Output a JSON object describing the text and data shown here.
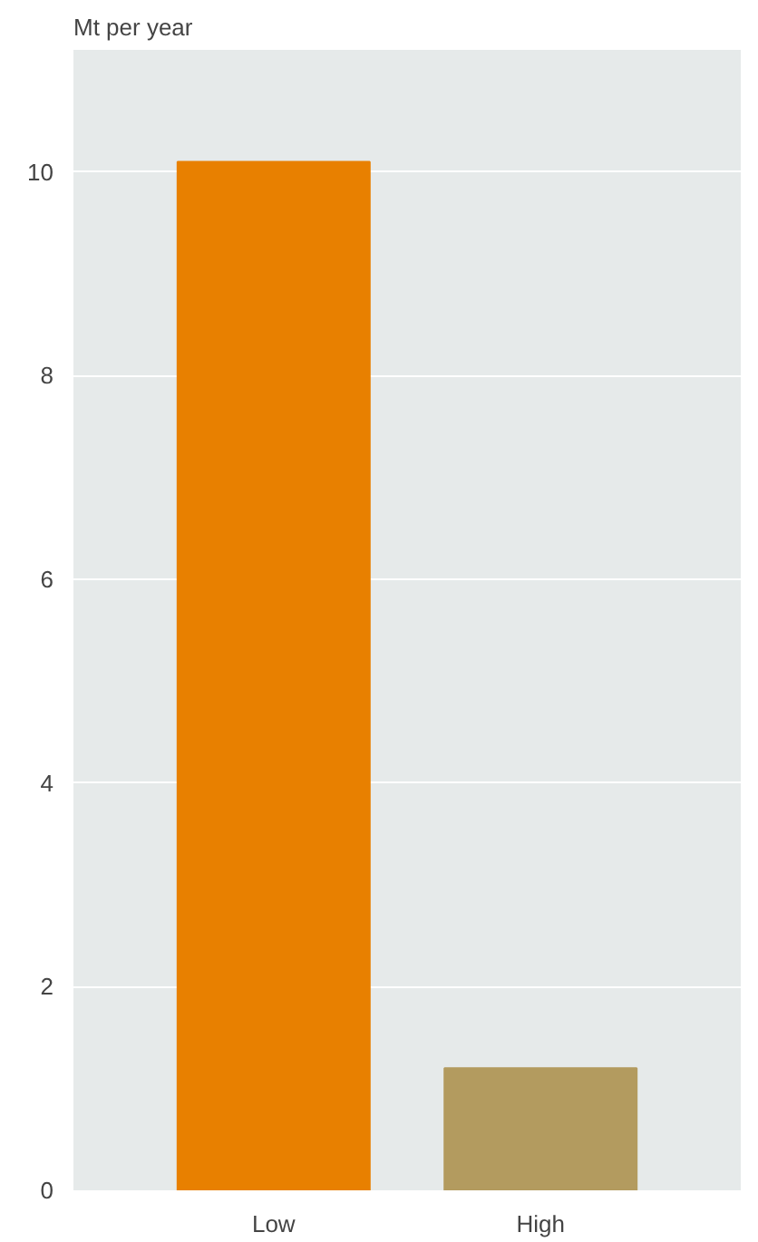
{
  "chart_data": {
    "type": "bar",
    "ylabel": "Mt per year",
    "categories": [
      "Low",
      "High"
    ],
    "values": [
      10.1,
      1.2
    ],
    "colors": [
      "#e88000",
      "#b39b5f"
    ],
    "ylim": [
      0,
      11.2
    ],
    "yticks": [
      0,
      2,
      4,
      6,
      8,
      10
    ],
    "grid": "y"
  }
}
